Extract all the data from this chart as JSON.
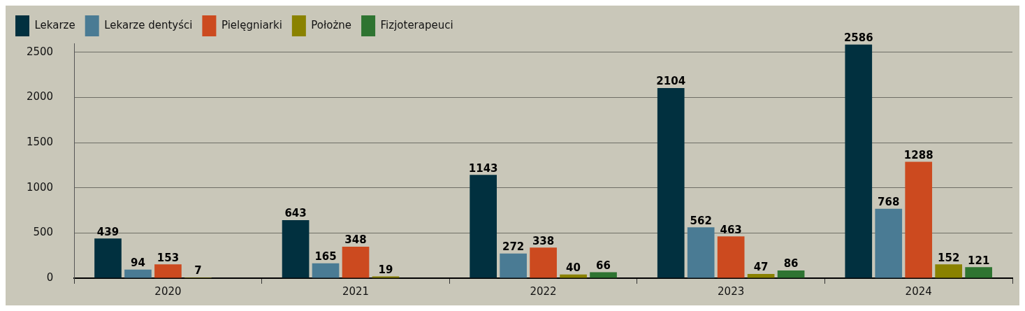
{
  "chart_data": {
    "type": "bar",
    "categories": [
      "2020",
      "2021",
      "2022",
      "2023",
      "2024"
    ],
    "series": [
      {
        "name": "Lekarze",
        "color": "#01303f",
        "values": [
          439,
          643,
          1143,
          2104,
          2586
        ]
      },
      {
        "name": "Lekarze dentyści",
        "color": "#4a7b94",
        "values": [
          94,
          165,
          272,
          562,
          768
        ]
      },
      {
        "name": "Pielęgniarki",
        "color": "#cc4a1f",
        "values": [
          153,
          348,
          338,
          463,
          1288
        ]
      },
      {
        "name": "Położne",
        "color": "#8a8200",
        "values": [
          7,
          19,
          40,
          47,
          152
        ]
      },
      {
        "name": "Fizjoterapeuci",
        "color": "#2e7431",
        "values": [
          null,
          null,
          66,
          86,
          121
        ]
      }
    ],
    "ylim": [
      0,
      2600
    ],
    "yticks": [
      0,
      500,
      1000,
      1500,
      2000,
      2500
    ],
    "grid": "y",
    "legend": "top left",
    "data_labels": true
  }
}
